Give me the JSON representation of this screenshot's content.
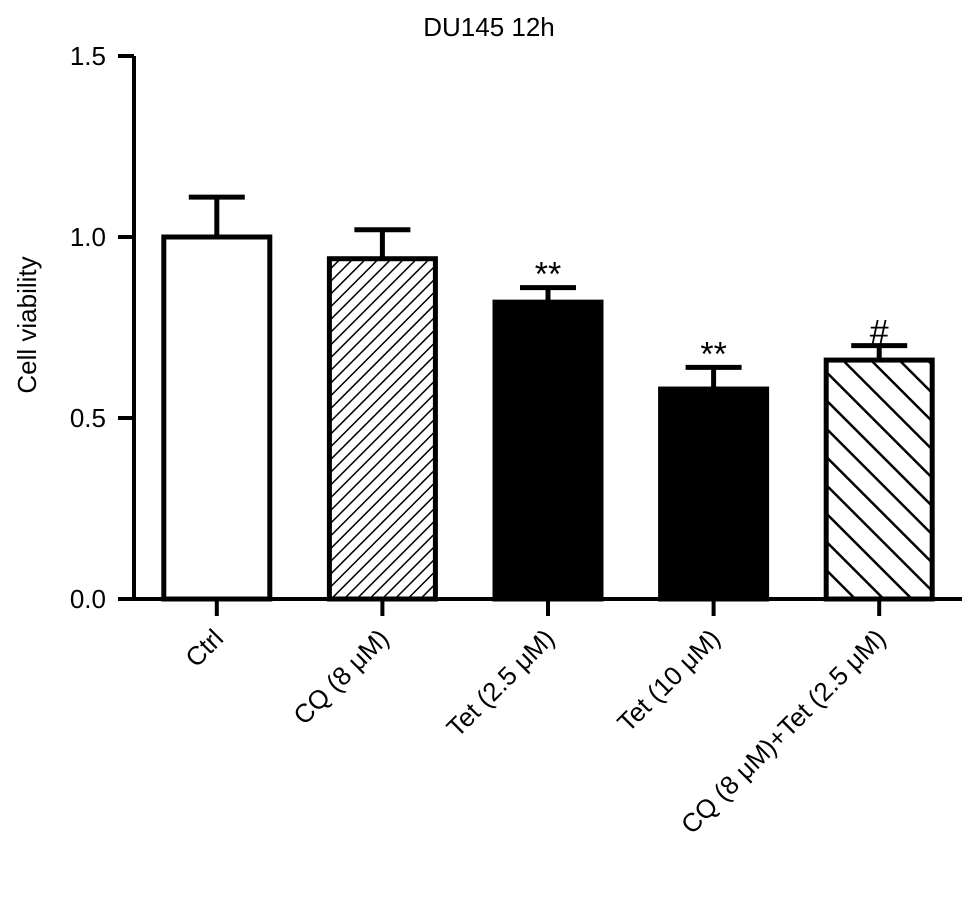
{
  "chart_data": {
    "type": "bar",
    "title": "DU145 12h",
    "xlabel": "",
    "ylabel": "Cell viability",
    "ylim": [
      0,
      1.5
    ],
    "yticks": [
      "0.0",
      "0.5",
      "1.0",
      "1.5"
    ],
    "yticks_values": [
      0,
      0.5,
      1.0,
      1.5
    ],
    "grid": false,
    "categories": [
      "Ctrl",
      "CQ (8 μM)",
      "Tet (2.5 μM)",
      "Tet (10 μM)",
      "CQ (8 μM)+Tet (2.5 μM)"
    ],
    "values": [
      1.0,
      0.94,
      0.82,
      0.58,
      0.66
    ],
    "errors": [
      0.11,
      0.08,
      0.04,
      0.06,
      0.04
    ],
    "fills": [
      "white",
      "dense-hatch",
      "black",
      "black",
      "wide-hatch"
    ],
    "annotations": [
      "",
      "",
      "**",
      "**",
      "#"
    ]
  }
}
